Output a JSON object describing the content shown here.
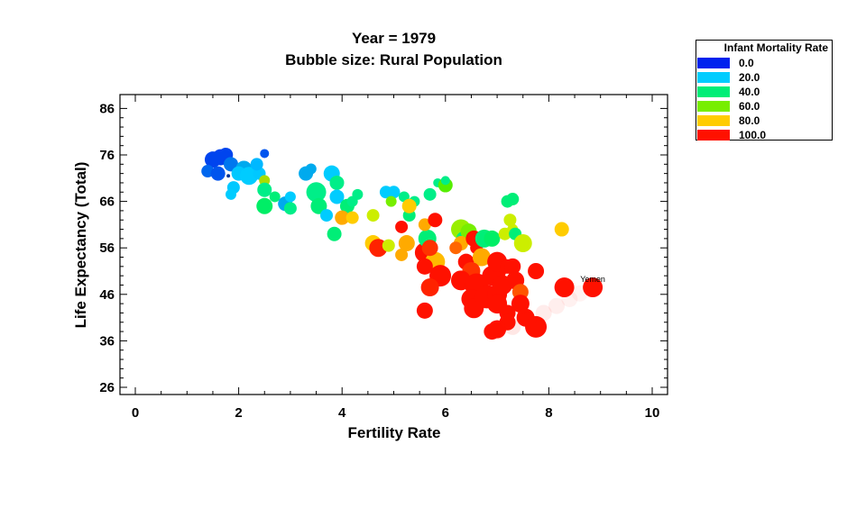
{
  "chart_data": {
    "type": "scatter",
    "title": "Year = 1979",
    "subtitle": "Bubble size: Rural Population",
    "xlabel": "Fertility Rate",
    "ylabel": "Life Expectancy (Total)",
    "xlim": [
      0,
      10
    ],
    "ylim": [
      26,
      86
    ],
    "xticks": [
      "0",
      "2",
      "4",
      "6",
      "8",
      "10"
    ],
    "yticks": [
      "26",
      "36",
      "46",
      "56",
      "66",
      "76",
      "86"
    ],
    "grid": false,
    "legend": {
      "title": "Infant Mortality Rate",
      "position": "top-right",
      "entries": [
        {
          "label": "0.0",
          "color": "#0022ee"
        },
        {
          "label": "20.0",
          "color": "#00ccff"
        },
        {
          "label": "40.0",
          "color": "#00ee77"
        },
        {
          "label": "60.0",
          "color": "#77ee00"
        },
        {
          "label": "80.0",
          "color": "#ffcc00"
        },
        {
          "label": "100.0",
          "color": "#ff1100"
        }
      ]
    },
    "annotations": [
      {
        "text": "Yemen",
        "x": 8.85,
        "y": 47.5
      }
    ],
    "points": [
      {
        "x": 1.5,
        "y": 75,
        "s": 9,
        "c": "#0044ee"
      },
      {
        "x": 1.65,
        "y": 75.5,
        "s": 9,
        "c": "#0044ee"
      },
      {
        "x": 1.75,
        "y": 76,
        "s": 8,
        "c": "#0044ee"
      },
      {
        "x": 1.4,
        "y": 72.5,
        "s": 7,
        "c": "#0066ee"
      },
      {
        "x": 1.6,
        "y": 72,
        "s": 8,
        "c": "#0055ee"
      },
      {
        "x": 1.85,
        "y": 74,
        "s": 8,
        "c": "#0077ee"
      },
      {
        "x": 2.5,
        "y": 76.3,
        "s": 5,
        "c": "#0055ee"
      },
      {
        "x": 1.8,
        "y": 71.5,
        "s": 2,
        "c": "#003399"
      },
      {
        "x": 2.1,
        "y": 73,
        "s": 9,
        "c": "#00aaee"
      },
      {
        "x": 2.0,
        "y": 72,
        "s": 8,
        "c": "#00c8ff"
      },
      {
        "x": 2.2,
        "y": 71.5,
        "s": 10,
        "c": "#00ccff"
      },
      {
        "x": 2.4,
        "y": 72,
        "s": 7,
        "c": "#00c8ff"
      },
      {
        "x": 1.9,
        "y": 69,
        "s": 7,
        "c": "#00c8ff"
      },
      {
        "x": 1.85,
        "y": 67.5,
        "s": 6,
        "c": "#00ccff"
      },
      {
        "x": 2.35,
        "y": 74,
        "s": 7,
        "c": "#00b8ff"
      },
      {
        "x": 2.5,
        "y": 70.5,
        "s": 6,
        "c": "#aadd00"
      },
      {
        "x": 2.5,
        "y": 68.5,
        "s": 8,
        "c": "#00ee88"
      },
      {
        "x": 2.7,
        "y": 67,
        "s": 6,
        "c": "#00ee77"
      },
      {
        "x": 2.5,
        "y": 65,
        "s": 9,
        "c": "#00ee66"
      },
      {
        "x": 2.9,
        "y": 65.5,
        "s": 8,
        "c": "#00aaee"
      },
      {
        "x": 3.0,
        "y": 64.5,
        "s": 7,
        "c": "#00ee88"
      },
      {
        "x": 3.0,
        "y": 67,
        "s": 6,
        "c": "#00ccff"
      },
      {
        "x": 3.3,
        "y": 72,
        "s": 8,
        "c": "#00aaee"
      },
      {
        "x": 3.4,
        "y": 73,
        "s": 6,
        "c": "#00aaee"
      },
      {
        "x": 3.5,
        "y": 68,
        "s": 11,
        "c": "#00ee88"
      },
      {
        "x": 3.55,
        "y": 65,
        "s": 9,
        "c": "#00ee77"
      },
      {
        "x": 3.8,
        "y": 72,
        "s": 9,
        "c": "#00ccff"
      },
      {
        "x": 3.9,
        "y": 70,
        "s": 8,
        "c": "#00ee88"
      },
      {
        "x": 3.9,
        "y": 67,
        "s": 8,
        "c": "#00ccff"
      },
      {
        "x": 3.7,
        "y": 63,
        "s": 7,
        "c": "#00ccff"
      },
      {
        "x": 3.85,
        "y": 59,
        "s": 8,
        "c": "#00ee77"
      },
      {
        "x": 4.1,
        "y": 65,
        "s": 8,
        "c": "#00ee77"
      },
      {
        "x": 4.2,
        "y": 66,
        "s": 6,
        "c": "#00ee88"
      },
      {
        "x": 4.3,
        "y": 67.5,
        "s": 6,
        "c": "#00ee88"
      },
      {
        "x": 4.0,
        "y": 62.5,
        "s": 8,
        "c": "#ffaa00"
      },
      {
        "x": 4.2,
        "y": 62.5,
        "s": 7,
        "c": "#ffcc00"
      },
      {
        "x": 4.6,
        "y": 63,
        "s": 7,
        "c": "#ccee00"
      },
      {
        "x": 4.6,
        "y": 57,
        "s": 9,
        "c": "#ffcc00"
      },
      {
        "x": 4.7,
        "y": 56,
        "s": 10,
        "c": "#ff2200"
      },
      {
        "x": 4.9,
        "y": 56.5,
        "s": 7,
        "c": "#ccee00"
      },
      {
        "x": 4.85,
        "y": 68,
        "s": 7,
        "c": "#00ccff"
      },
      {
        "x": 5.0,
        "y": 68,
        "s": 7,
        "c": "#00ccff"
      },
      {
        "x": 4.95,
        "y": 66,
        "s": 6,
        "c": "#77ee00"
      },
      {
        "x": 5.2,
        "y": 67,
        "s": 6,
        "c": "#00ee88"
      },
      {
        "x": 5.4,
        "y": 66,
        "s": 6,
        "c": "#00ee88"
      },
      {
        "x": 5.7,
        "y": 67.5,
        "s": 7,
        "c": "#00ee88"
      },
      {
        "x": 5.3,
        "y": 63,
        "s": 7,
        "c": "#00ee77"
      },
      {
        "x": 5.3,
        "y": 65,
        "s": 8,
        "c": "#ffcc00"
      },
      {
        "x": 5.15,
        "y": 60.5,
        "s": 7,
        "c": "#ff1100"
      },
      {
        "x": 5.25,
        "y": 57,
        "s": 9,
        "c": "#ffaa00"
      },
      {
        "x": 5.15,
        "y": 54.5,
        "s": 7,
        "c": "#ffaa00"
      },
      {
        "x": 5.6,
        "y": 55,
        "s": 11,
        "c": "#ff1100"
      },
      {
        "x": 5.65,
        "y": 58,
        "s": 10,
        "c": "#00ee77"
      },
      {
        "x": 5.8,
        "y": 53,
        "s": 11,
        "c": "#ffbb00"
      },
      {
        "x": 5.6,
        "y": 61,
        "s": 7,
        "c": "#ffaa00"
      },
      {
        "x": 5.8,
        "y": 62,
        "s": 8,
        "c": "#ff1100"
      },
      {
        "x": 5.7,
        "y": 56,
        "s": 9,
        "c": "#ff3300"
      },
      {
        "x": 5.6,
        "y": 52,
        "s": 9,
        "c": "#ff1100"
      },
      {
        "x": 5.9,
        "y": 50,
        "s": 12,
        "c": "#ff1100"
      },
      {
        "x": 5.7,
        "y": 47.5,
        "s": 10,
        "c": "#ff2200"
      },
      {
        "x": 5.6,
        "y": 42.5,
        "s": 9,
        "c": "#ff1100"
      },
      {
        "x": 5.85,
        "y": 70,
        "s": 5,
        "c": "#00ee88"
      },
      {
        "x": 6.0,
        "y": 69.5,
        "s": 8,
        "c": "#55ee00"
      },
      {
        "x": 6.0,
        "y": 70.5,
        "s": 5,
        "c": "#00ee88"
      },
      {
        "x": 6.3,
        "y": 60,
        "s": 11,
        "c": "#99ee00"
      },
      {
        "x": 6.35,
        "y": 58,
        "s": 8,
        "c": "#00ee77"
      },
      {
        "x": 6.45,
        "y": 59.5,
        "s": 9,
        "c": "#77ee00"
      },
      {
        "x": 6.3,
        "y": 57,
        "s": 8,
        "c": "#ffaa00"
      },
      {
        "x": 6.55,
        "y": 58,
        "s": 9,
        "c": "#ff1100"
      },
      {
        "x": 6.2,
        "y": 56,
        "s": 7,
        "c": "#ff6600"
      },
      {
        "x": 6.6,
        "y": 56,
        "s": 7,
        "c": "#ff1100"
      },
      {
        "x": 6.4,
        "y": 53,
        "s": 9,
        "c": "#ff1100"
      },
      {
        "x": 6.7,
        "y": 54,
        "s": 10,
        "c": "#ffaa00"
      },
      {
        "x": 6.5,
        "y": 51,
        "s": 10,
        "c": "#ff3300"
      },
      {
        "x": 6.3,
        "y": 49,
        "s": 11,
        "c": "#ff1100"
      },
      {
        "x": 6.6,
        "y": 48,
        "s": 13,
        "c": "#ff1100"
      },
      {
        "x": 6.5,
        "y": 45,
        "s": 11,
        "c": "#ff1100"
      },
      {
        "x": 6.55,
        "y": 43,
        "s": 11,
        "c": "#ff1100"
      },
      {
        "x": 6.8,
        "y": 45.5,
        "s": 13,
        "c": "#ff1100"
      },
      {
        "x": 6.9,
        "y": 50,
        "s": 11,
        "c": "#ff1100"
      },
      {
        "x": 7.0,
        "y": 46,
        "s": 11,
        "c": "#ff1100"
      },
      {
        "x": 6.75,
        "y": 58,
        "s": 10,
        "c": "#00ee77"
      },
      {
        "x": 6.9,
        "y": 58,
        "s": 9,
        "c": "#00ee66"
      },
      {
        "x": 7.0,
        "y": 51,
        "s": 10,
        "c": "#ff1100"
      },
      {
        "x": 7.0,
        "y": 53,
        "s": 11,
        "c": "#ff1100"
      },
      {
        "x": 7.2,
        "y": 66,
        "s": 7,
        "c": "#00ee77"
      },
      {
        "x": 7.3,
        "y": 66.5,
        "s": 7,
        "c": "#00ee77"
      },
      {
        "x": 7.25,
        "y": 62,
        "s": 7,
        "c": "#ccee00"
      },
      {
        "x": 7.15,
        "y": 59,
        "s": 7,
        "c": "#ccee00"
      },
      {
        "x": 7.3,
        "y": 60,
        "s": 6,
        "c": "#ccee00"
      },
      {
        "x": 7.35,
        "y": 59,
        "s": 7,
        "c": "#00ee77"
      },
      {
        "x": 7.5,
        "y": 57,
        "s": 10,
        "c": "#ccee00"
      },
      {
        "x": 7.2,
        "y": 52,
        "s": 8,
        "c": "#ff1100"
      },
      {
        "x": 7.3,
        "y": 52,
        "s": 9,
        "c": "#ff1100"
      },
      {
        "x": 7.35,
        "y": 49,
        "s": 10,
        "c": "#ff1100"
      },
      {
        "x": 7.1,
        "y": 48,
        "s": 11,
        "c": "#ff1100"
      },
      {
        "x": 7.0,
        "y": 44,
        "s": 11,
        "c": "#ff1100"
      },
      {
        "x": 7.2,
        "y": 42,
        "s": 9,
        "c": "#ff1100"
      },
      {
        "x": 7.45,
        "y": 46.5,
        "s": 9,
        "c": "#ff5500"
      },
      {
        "x": 7.45,
        "y": 44,
        "s": 10,
        "c": "#ff1100"
      },
      {
        "x": 7.2,
        "y": 40,
        "s": 9,
        "c": "#ff1100"
      },
      {
        "x": 7.0,
        "y": 38.5,
        "s": 10,
        "c": "#ff1100"
      },
      {
        "x": 6.9,
        "y": 38,
        "s": 9,
        "c": "#ff1100"
      },
      {
        "x": 7.55,
        "y": 41,
        "s": 10,
        "c": "#ff1100"
      },
      {
        "x": 7.75,
        "y": 51,
        "s": 9,
        "c": "#ff1100"
      },
      {
        "x": 7.75,
        "y": 39,
        "s": 12,
        "c": "#ff1100"
      },
      {
        "x": 8.25,
        "y": 60,
        "s": 8,
        "c": "#ffcc00"
      },
      {
        "x": 8.3,
        "y": 47.5,
        "s": 11,
        "c": "#ff1100"
      },
      {
        "x": 8.85,
        "y": 47.5,
        "s": 11,
        "c": "#ff1100",
        "label": "Yemen"
      },
      {
        "x": 7.0,
        "y": 38,
        "s": 9,
        "c": "#ff1100",
        "a": 0.12
      },
      {
        "x": 7.3,
        "y": 39,
        "s": 9,
        "c": "#ff1100",
        "a": 0.1
      },
      {
        "x": 7.6,
        "y": 40.5,
        "s": 9,
        "c": "#ff1100",
        "a": 0.1
      },
      {
        "x": 7.9,
        "y": 42,
        "s": 9,
        "c": "#ff1100",
        "a": 0.08
      },
      {
        "x": 8.15,
        "y": 43.5,
        "s": 9,
        "c": "#ff1100",
        "a": 0.07
      },
      {
        "x": 8.4,
        "y": 45,
        "s": 9,
        "c": "#ff1100",
        "a": 0.06
      },
      {
        "x": 8.6,
        "y": 46.2,
        "s": 9,
        "c": "#ff1100",
        "a": 0.05
      }
    ]
  }
}
